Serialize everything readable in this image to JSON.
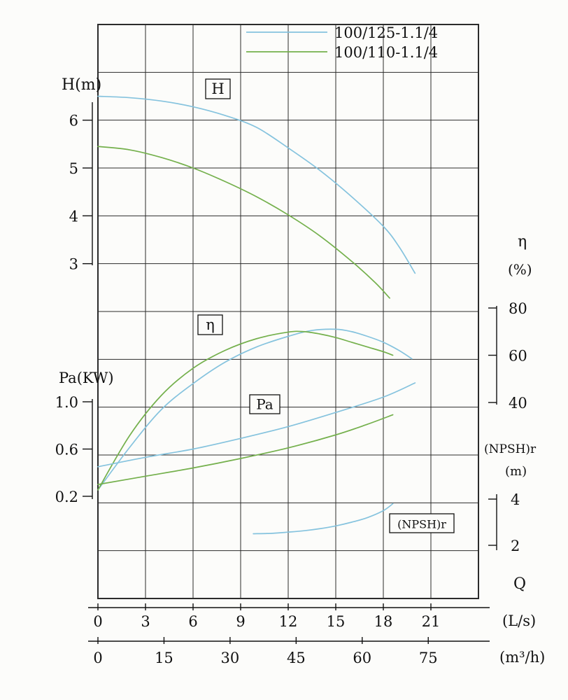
{
  "page": {
    "background": "#fcfcfa"
  },
  "colors": {
    "blue": "#85c3de",
    "green": "#74b04c",
    "grid": "#2b2b2b",
    "text": "#111111",
    "box_fill": "#fcfcfa"
  },
  "legend": {
    "items": [
      {
        "label": "100/125-1.1/4",
        "color": "#85c3de"
      },
      {
        "label": "100/110-1.1/4",
        "color": "#74b04c"
      }
    ]
  },
  "chart_data": {
    "type": "line",
    "x_axis": {
      "name": "Q",
      "scales": [
        {
          "unit_label": "(L/s)",
          "tick_labels": [
            "0",
            "3",
            "6",
            "9",
            "12",
            "15",
            "18",
            "21"
          ],
          "tick_values": [
            0,
            3,
            6,
            9,
            12,
            15,
            18,
            21
          ],
          "range": [
            0,
            24
          ]
        },
        {
          "unit_label": "(m³/h)",
          "tick_labels": [
            "0",
            "15",
            "30",
            "45",
            "60",
            "75"
          ],
          "tick_values": [
            0,
            15,
            30,
            45,
            60,
            75
          ]
        }
      ]
    },
    "y_axes": [
      {
        "id": "H",
        "title": "H(m)",
        "side": "left",
        "tick_labels": [
          "6",
          "5",
          "4",
          "3"
        ],
        "tick_values": [
          6,
          5,
          4,
          3
        ]
      },
      {
        "id": "Pa",
        "title": "Pa(KW)",
        "side": "left",
        "tick_labels": [
          "1.0",
          "0.6",
          "0.2"
        ],
        "tick_values": [
          1.0,
          0.6,
          0.2
        ]
      },
      {
        "id": "eta",
        "title": "η",
        "unit": "(%)",
        "side": "right",
        "tick_labels": [
          "80",
          "60",
          "40"
        ],
        "tick_values": [
          80,
          60,
          40
        ]
      },
      {
        "id": "npshr",
        "title": "(NPSH)r",
        "unit": "(m)",
        "side": "right",
        "tick_labels": [
          "4",
          "2"
        ],
        "tick_values": [
          4,
          2
        ]
      }
    ],
    "curve_labels": {
      "H": "H",
      "eta": "η",
      "Pa": "Pa",
      "npshr": "(NPSH)r"
    },
    "series": [
      {
        "id": "H-100-125",
        "quantity": "H",
        "model": "100/125-1.1/4",
        "axis": "H",
        "color": "#85c3de",
        "points": [
          [
            0,
            6.5
          ],
          [
            2,
            6.47
          ],
          [
            4,
            6.4
          ],
          [
            6,
            6.28
          ],
          [
            8,
            6.1
          ],
          [
            10,
            5.85
          ],
          [
            12,
            5.42
          ],
          [
            14,
            4.95
          ],
          [
            16,
            4.4
          ],
          [
            18,
            3.78
          ],
          [
            19,
            3.35
          ],
          [
            20,
            2.8
          ]
        ]
      },
      {
        "id": "H-100-110",
        "quantity": "H",
        "model": "100/110-1.1/4",
        "axis": "H",
        "color": "#74b04c",
        "points": [
          [
            0,
            5.45
          ],
          [
            2,
            5.38
          ],
          [
            4,
            5.22
          ],
          [
            6,
            5.0
          ],
          [
            8,
            4.72
          ],
          [
            10,
            4.4
          ],
          [
            12,
            4.02
          ],
          [
            14,
            3.58
          ],
          [
            16,
            3.05
          ],
          [
            17.5,
            2.6
          ],
          [
            18.4,
            2.28
          ]
        ]
      },
      {
        "id": "eta-100-125",
        "quantity": "η",
        "model": "100/125-1.1/4",
        "axis": "eta",
        "color": "#85c3de",
        "points": [
          [
            0,
            3
          ],
          [
            2,
            21
          ],
          [
            4,
            37
          ],
          [
            6,
            48
          ],
          [
            8,
            57
          ],
          [
            10,
            63.5
          ],
          [
            12,
            68
          ],
          [
            13.5,
            70.5
          ],
          [
            15,
            71
          ],
          [
            16,
            70
          ],
          [
            17,
            68
          ],
          [
            18,
            65.5
          ],
          [
            19,
            62
          ],
          [
            19.8,
            58.5
          ]
        ]
      },
      {
        "id": "eta-100-110",
        "quantity": "η",
        "model": "100/110-1.1/4",
        "axis": "eta",
        "color": "#74b04c",
        "points": [
          [
            0,
            3
          ],
          [
            2,
            26
          ],
          [
            4,
            43
          ],
          [
            6,
            54.5
          ],
          [
            8,
            62
          ],
          [
            10,
            67
          ],
          [
            12,
            69.8
          ],
          [
            13,
            70
          ],
          [
            14,
            69
          ],
          [
            15,
            67.5
          ],
          [
            16,
            65.5
          ],
          [
            17,
            63.5
          ],
          [
            18,
            61.5
          ],
          [
            18.6,
            60
          ]
        ]
      },
      {
        "id": "Pa-100-125",
        "quantity": "Pa",
        "model": "100/125-1.1/4",
        "axis": "Pa",
        "color": "#85c3de",
        "points": [
          [
            0,
            0.45
          ],
          [
            3,
            0.53
          ],
          [
            6,
            0.6
          ],
          [
            9,
            0.69
          ],
          [
            12,
            0.79
          ],
          [
            15,
            0.91
          ],
          [
            18,
            1.04
          ],
          [
            20,
            1.16
          ]
        ]
      },
      {
        "id": "Pa-100-110",
        "quantity": "Pa",
        "model": "100/110-1.1/4",
        "axis": "Pa",
        "color": "#74b04c",
        "points": [
          [
            0,
            0.3
          ],
          [
            3,
            0.37
          ],
          [
            6,
            0.44
          ],
          [
            9,
            0.52
          ],
          [
            12,
            0.61
          ],
          [
            15,
            0.72
          ],
          [
            17,
            0.81
          ],
          [
            18.6,
            0.89
          ]
        ]
      },
      {
        "id": "NPSHr-100-125",
        "quantity": "(NPSH)r",
        "model": "100/125-1.1/4",
        "axis": "npshr",
        "color": "#85c3de",
        "points": [
          [
            9.8,
            2.5
          ],
          [
            11,
            2.52
          ],
          [
            12,
            2.57
          ],
          [
            13,
            2.63
          ],
          [
            14,
            2.72
          ],
          [
            15,
            2.84
          ],
          [
            16,
            3.0
          ],
          [
            17,
            3.2
          ],
          [
            18,
            3.5
          ],
          [
            18.6,
            3.8
          ]
        ]
      }
    ]
  }
}
